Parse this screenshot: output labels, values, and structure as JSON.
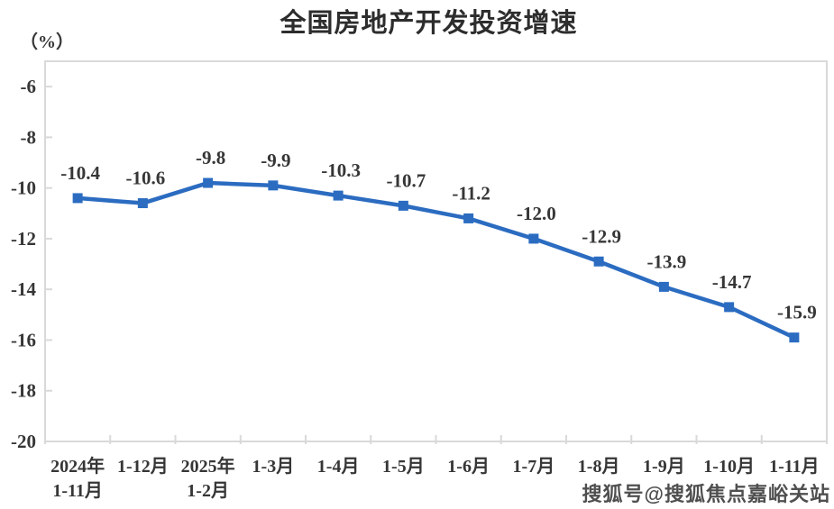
{
  "chart_data": {
    "type": "line",
    "title": "全国房地产开发投资增速",
    "y_unit": "（%）",
    "categories": [
      [
        "2024年",
        "1-11月"
      ],
      [
        "1-12月"
      ],
      [
        "2025年",
        "1-2月"
      ],
      [
        "1-3月"
      ],
      [
        "1-4月"
      ],
      [
        "1-5月"
      ],
      [
        "1-6月"
      ],
      [
        "1-7月"
      ],
      [
        "1-8月"
      ],
      [
        "1-9月"
      ],
      [
        "1-10月"
      ],
      [
        "1-11月"
      ]
    ],
    "values": [
      -10.4,
      -10.6,
      -9.8,
      -9.9,
      -10.3,
      -10.7,
      -11.2,
      -12.0,
      -12.9,
      -13.9,
      -14.7,
      -15.9
    ],
    "data_labels": [
      "-10.4",
      "-10.6",
      "-9.8",
      "-9.9",
      "-10.3",
      "-10.7",
      "-11.2",
      "-12.0",
      "-12.9",
      "-13.9",
      "-14.7",
      "-15.9"
    ],
    "y_ticks": [
      -6,
      -8,
      -10,
      -12,
      -14,
      -16,
      -18,
      -20
    ],
    "y_axis_min": -20,
    "y_axis_max": -5,
    "grid": false,
    "legend_position": "none",
    "marker": "square",
    "colors": {
      "line": "#2b6cc1",
      "axis": "#d9d9d9",
      "label": "#363636",
      "title": "#2d2d2d"
    }
  },
  "watermark": {
    "text": "搜狐号@搜狐焦点嘉峪关站"
  }
}
